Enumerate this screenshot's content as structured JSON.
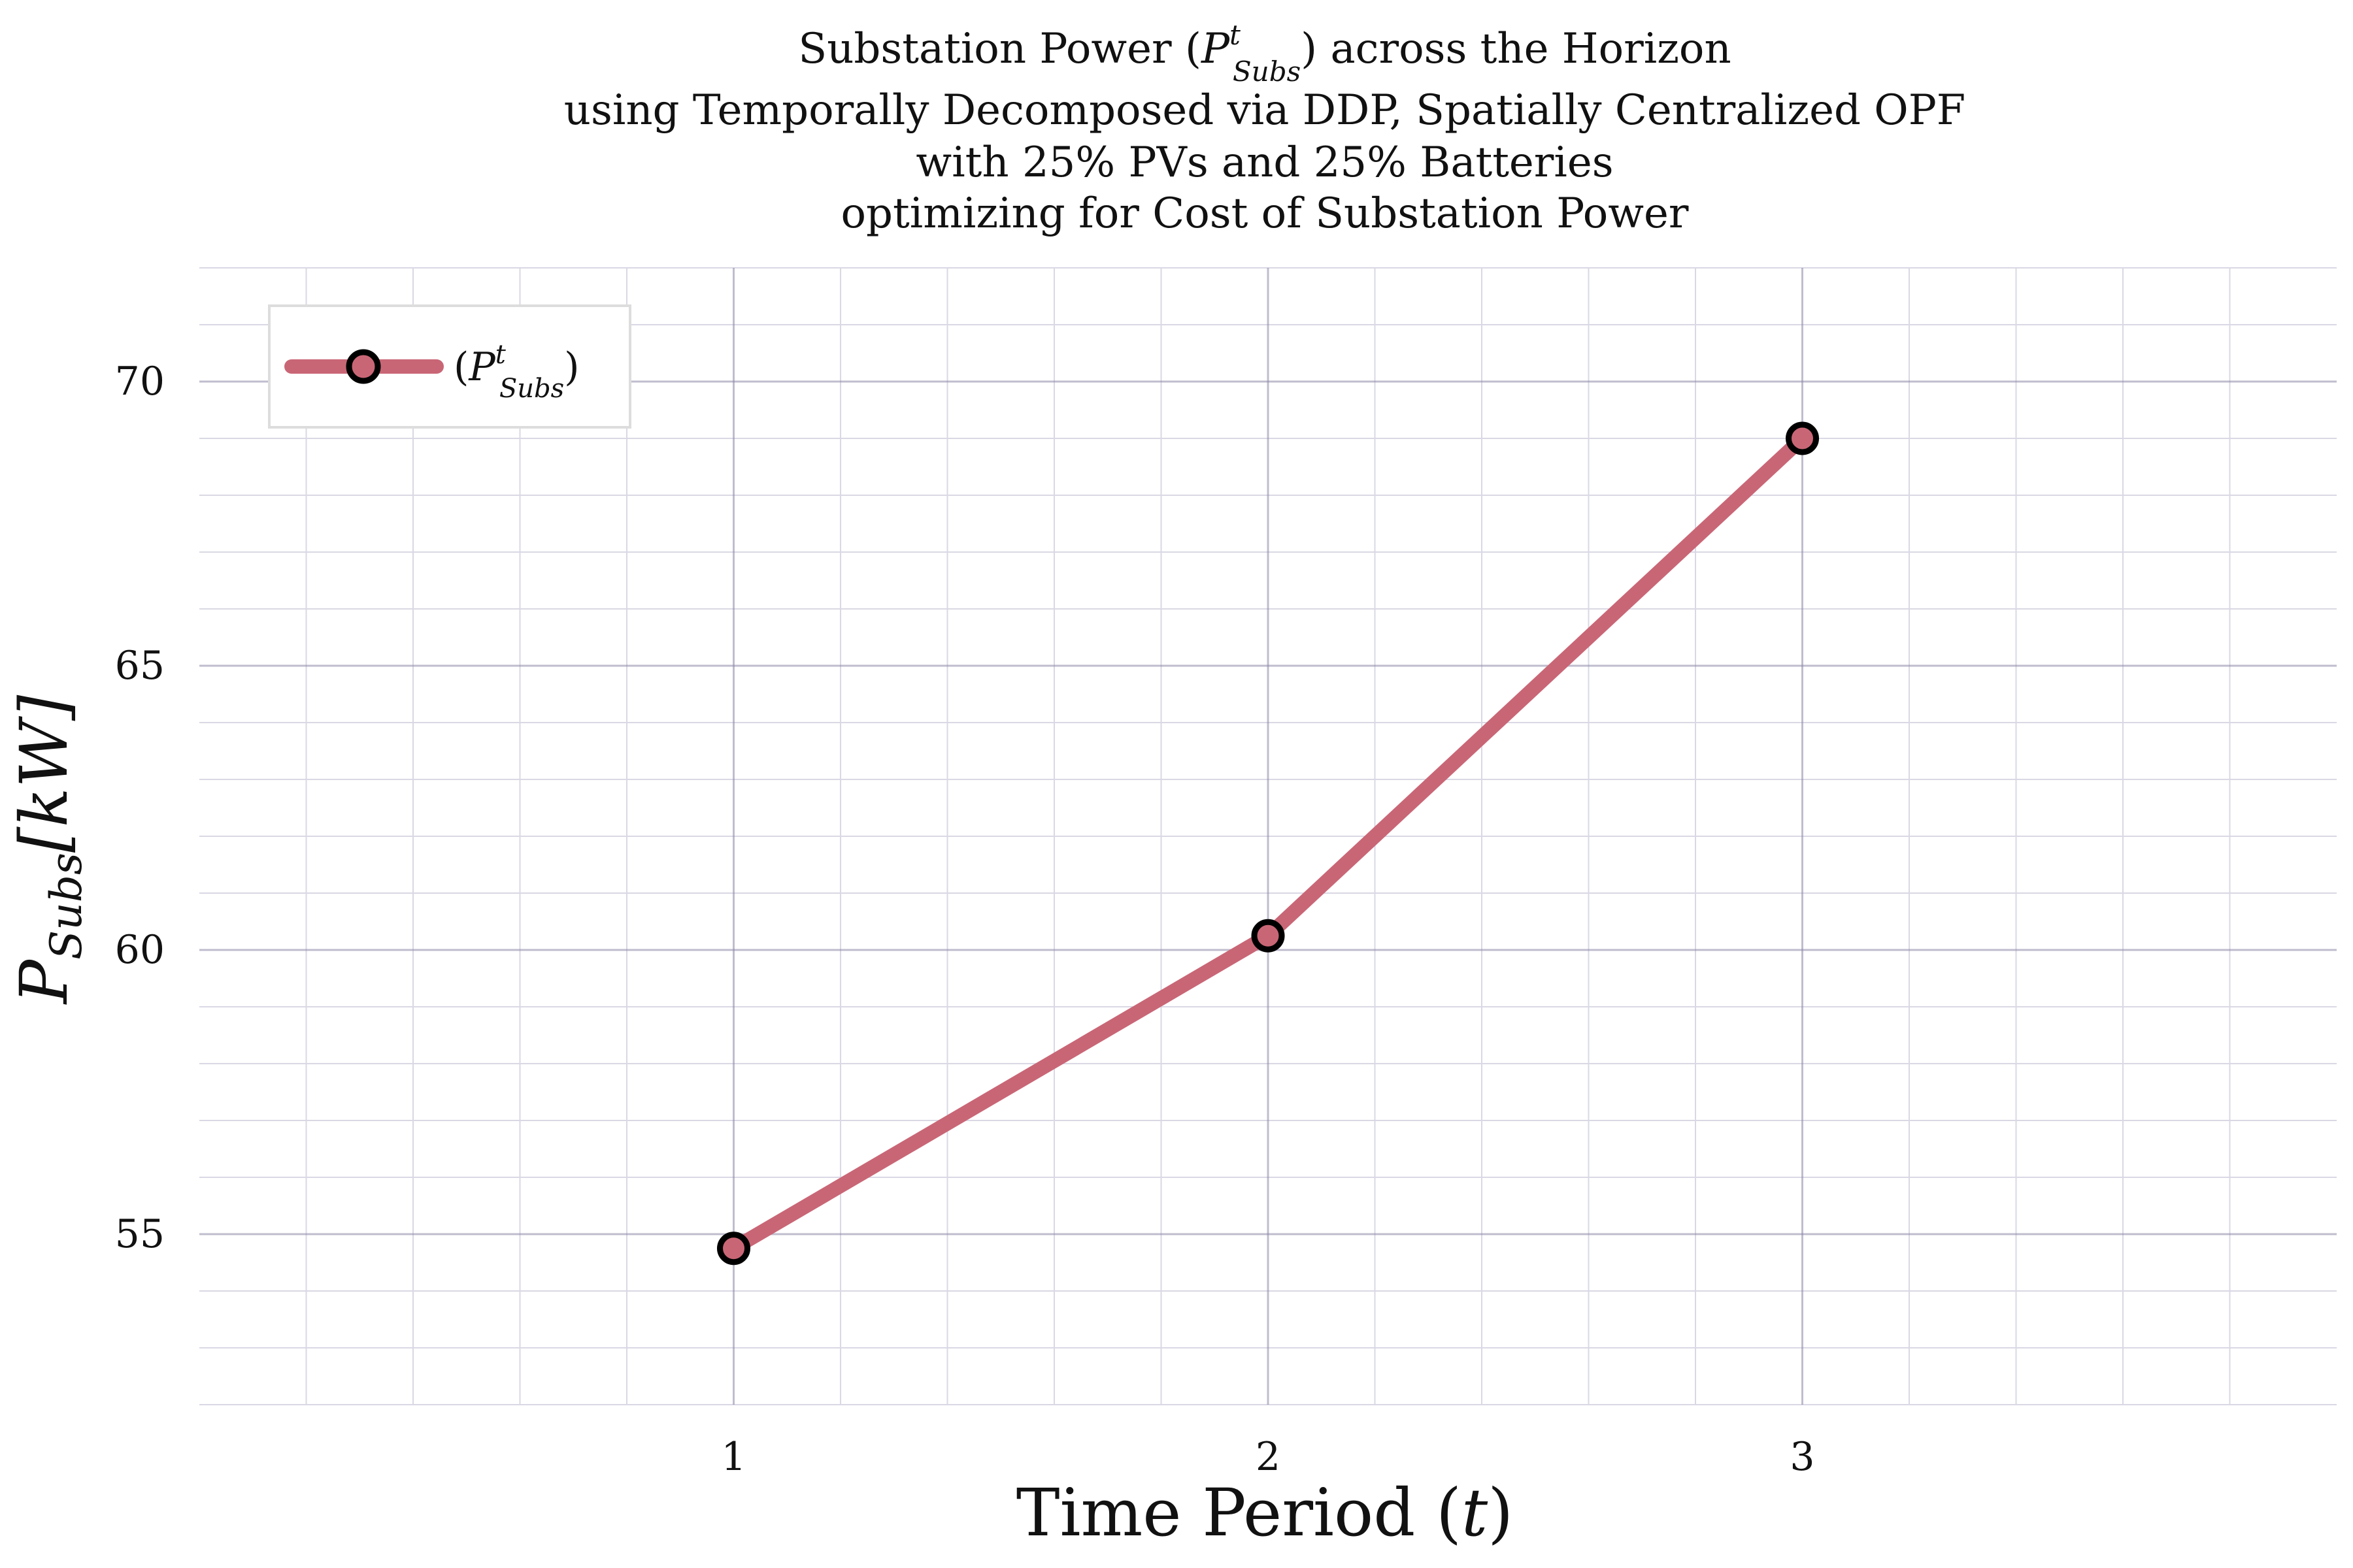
{
  "colors": {
    "series": "#c96676",
    "marker_edge": "#000000",
    "major_grid": "#8a86a6",
    "minor_grid": "#d9d8e4",
    "legend_border": "#dddddd",
    "text": "#111111"
  },
  "title_lines": {
    "line1_pre": "Substation Power (",
    "line1_sym": "P",
    "line1_sup": "t",
    "line1_sub": "Subs",
    "line1_post": ") across the Horizon",
    "line2": "using Temporally Decomposed via DDP, Spatially Centralized OPF",
    "line3": "with 25% PVs and 25% Batteries",
    "line4": "optimizing for Cost of Substation Power"
  },
  "legend": {
    "paren_open": "(",
    "sym": "P",
    "sup": "t",
    "sub": "Subs",
    "paren_close": ")"
  },
  "axis_labels": {
    "x_text": "Time Period (",
    "x_var": "t",
    "x_close": ")",
    "y_sym": "P",
    "y_sub": "Subs",
    "y_unit": "[kW]"
  },
  "chart_data": {
    "type": "line",
    "title": "Substation Power (P^t_Subs) across the Horizon using Temporally Decomposed via DDP, Spatially Centralized OPF with 25% PVs and 25% Batteries optimizing for Cost of Substation Power",
    "xlabel": "Time Period (t)",
    "ylabel": "P_Subs [kW]",
    "x": [
      1,
      2,
      3
    ],
    "series": [
      {
        "name": "(P^t_Subs)",
        "values": [
          54.75,
          60.25,
          69.0
        ]
      }
    ],
    "xlim": [
      0,
      4
    ],
    "ylim": [
      52.0,
      72.0
    ],
    "xticks": [
      1,
      2,
      3
    ],
    "yticks": [
      55,
      60,
      65,
      70
    ],
    "xticklabels": [
      "1",
      "2",
      "3"
    ],
    "yticklabels": [
      "55",
      "60",
      "65",
      "70"
    ],
    "grid": true,
    "minor_grid": true,
    "legend_position": "top-left"
  }
}
